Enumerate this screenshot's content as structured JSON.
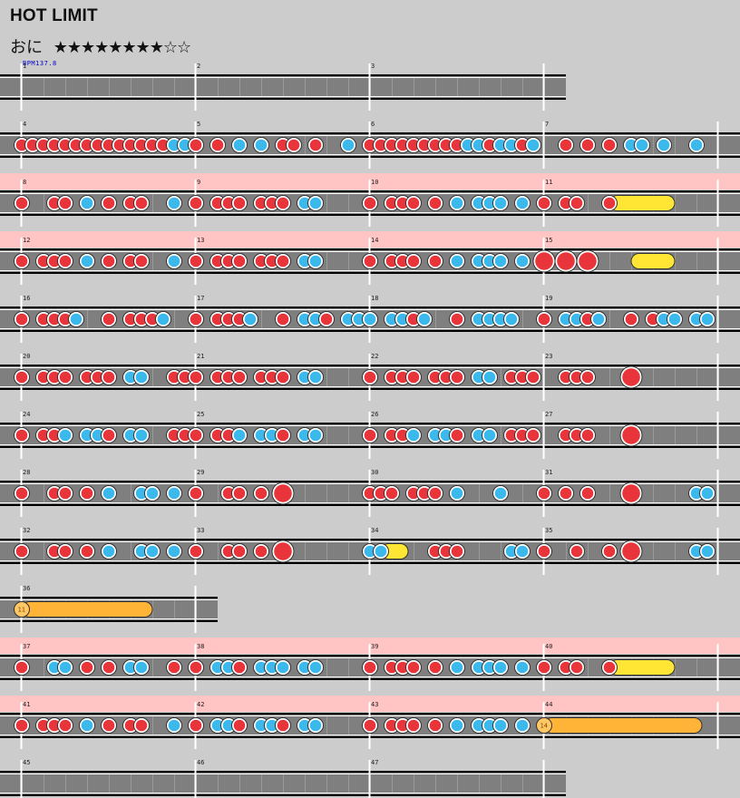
{
  "song": {
    "title": "HOT LIMIT",
    "difficulty": "おに",
    "stars": "★★★★★★★★☆☆",
    "bpm_label": "BPM137.8"
  },
  "colors": {
    "background": "#cccccc",
    "lane": "#7f7f7f",
    "gogo_band": "#ffc4c4",
    "don": "#e8353b",
    "ka": "#3cb9ec",
    "drumroll": "#ffe534",
    "balloon": "#ffb438"
  },
  "measures": [
    {
      "n": "1",
      "row": 0,
      "notes": ""
    },
    {
      "n": "2",
      "row": 0,
      "notes": ""
    },
    {
      "n": "3",
      "row": 0,
      "notes": ""
    },
    {
      "n": "4",
      "row": 1,
      "notes": "0d 1d 2d 3d 4d 5d 6d 7d 8d 9d 10d 11d 12d 13d 14k 15k"
    },
    {
      "n": "5",
      "row": 1,
      "notes": "0d 2d 4k 6k 8d 9d 11d 14k"
    },
    {
      "n": "6",
      "row": 1,
      "notes": "0d 1d 2d 3d 4d 5d 6d 7d 8d 9k 10k 11d 12k 13k 14d 15k"
    },
    {
      "n": "7",
      "row": 1,
      "notes": "2d 4d 6d 8k 9k 11k 14k"
    },
    {
      "n": "8",
      "row": 2,
      "gogo": true,
      "notes": "0d 3d 4d 6k 8d 10d 11d 14k"
    },
    {
      "n": "9",
      "row": 2,
      "gogo": true,
      "notes": "0d 2d 3d 4d 6d 7d 8d 10k 11k"
    },
    {
      "n": "10",
      "row": 2,
      "gogo": true,
      "notes": "0d 2d 3d 4d 6d 8k 10k 11k 12k 14k"
    },
    {
      "n": "11",
      "row": 2,
      "gogo": true,
      "notes": "0d 2d 3d 6d",
      "roll": {
        "type": "drumroll",
        "start": 6,
        "end": 12
      }
    },
    {
      "n": "12",
      "row": 3,
      "gogo": true,
      "notes": "0d 2d 3d 4d 6k 8d 10d 11d 14k"
    },
    {
      "n": "13",
      "row": 3,
      "gogo": true,
      "notes": "0d 2d 3d 4d 6d 7d 8d 10k 11k"
    },
    {
      "n": "14",
      "row": 3,
      "gogo": true,
      "notes": "0d 2d 3d 4d 6d 8k 10k 11k 12k 14k"
    },
    {
      "n": "15",
      "row": 3,
      "gogo": true,
      "notes": "0D 2D 4D",
      "roll": {
        "type": "drumroll",
        "start": 8,
        "end": 12
      }
    },
    {
      "n": "16",
      "row": 4,
      "notes": "0d 2d 3d 4d 5k 8d 10d 11d 12d 13k"
    },
    {
      "n": "17",
      "row": 4,
      "notes": "0d 2d 3d 4d 5k 8d 10k 11k 12d 14k 15k"
    },
    {
      "n": "18",
      "row": 4,
      "notes": "0k 2k 3k 4d 5k 8d 10k 11k 12k 13k"
    },
    {
      "n": "19",
      "row": 4,
      "notes": "0d 2k 3k 4d 5k 8d 10d 11k 12k 14k 15k"
    },
    {
      "n": "20",
      "row": 5,
      "notes": "0d 2d 3d 4d 6d 7d 8d 10k 11k 14d 15d"
    },
    {
      "n": "21",
      "row": 5,
      "notes": "0d 2d 3d 4d 6d 7d 8d 10k 11k"
    },
    {
      "n": "22",
      "row": 5,
      "notes": "0d 2d 3d 4d 6d 7d 8d 10k 11k 13d 14d 15d"
    },
    {
      "n": "23",
      "row": 5,
      "notes": "2d 3d 4d 8D"
    },
    {
      "n": "24",
      "row": 6,
      "notes": "0d 2d 3d 4k 6k 7k 8d 10k 11k 14d 15d"
    },
    {
      "n": "25",
      "row": 6,
      "notes": "0d 2d 3d 4k 6k 7k 8d 10k 11k"
    },
    {
      "n": "26",
      "row": 6,
      "notes": "0d 2d 3d 4k 6k 7k 8d 10k 11k 13d 14d 15d"
    },
    {
      "n": "27",
      "row": 6,
      "notes": "2d 3d 4d 8D"
    },
    {
      "n": "28",
      "row": 7,
      "notes": "0d 3d 4d 6d 8k 11k 12k 14k"
    },
    {
      "n": "29",
      "row": 7,
      "notes": "0d 3d 4d 6d 8D"
    },
    {
      "n": "30",
      "row": 7,
      "notes": "0d 1d 2d 4d 5d 6d 8k 12k"
    },
    {
      "n": "31",
      "row": 7,
      "notes": "0d 2d 4d 8D 14k 15k"
    },
    {
      "n": "32",
      "row": 8,
      "notes": "0d 3d 4d 6d 8k 11k 12k 14k"
    },
    {
      "n": "33",
      "row": 8,
      "notes": "0d 3d 4d 6d 8D"
    },
    {
      "n": "34",
      "row": 8,
      "notes": "0k 1k",
      "roll": {
        "type": "drumroll",
        "start": 1,
        "end": 3.5
      },
      "extra": "6d 7d 8d 13k 14k"
    },
    {
      "n": "35",
      "row": 8,
      "notes": "0d 3d 6d 8D 14k 15k"
    },
    {
      "n": "36",
      "row": 9,
      "notes": "",
      "roll": {
        "type": "balloon",
        "start": 0,
        "end": 12,
        "count": "11"
      }
    },
    {
      "n": "37",
      "row": 10,
      "gogo": true,
      "notes": "0d 3k 4k 6d 8d 10k 11k 14d"
    },
    {
      "n": "38",
      "row": 10,
      "gogo": true,
      "notes": "0d 2k 3k 4d 6k 7k 8k 10k 11k"
    },
    {
      "n": "39",
      "row": 10,
      "gogo": true,
      "notes": "0d 2d 3d 4d 6d 8k 10k 11k 12k 14k"
    },
    {
      "n": "40",
      "row": 10,
      "gogo": true,
      "notes": "0d 2d 3d 6d",
      "roll": {
        "type": "drumroll",
        "start": 6,
        "end": 12
      }
    },
    {
      "n": "41",
      "row": 11,
      "gogo": true,
      "notes": "0d 2d 3d 4d 6k 8d 10d 11d 14k"
    },
    {
      "n": "42",
      "row": 11,
      "gogo": true,
      "notes": "0d 2k 3k 4d 6k 7k 8d 10k 11k"
    },
    {
      "n": "43",
      "row": 11,
      "gogo": true,
      "notes": "0d 2d 3d 4d 6d 8k 10k 11k 12k 14k"
    },
    {
      "n": "44",
      "row": 11,
      "gogo": true,
      "notes": "",
      "roll": {
        "type": "balloon",
        "start": 0,
        "end": 14.5,
        "count": "14"
      }
    },
    {
      "n": "45",
      "row": 12,
      "notes": ""
    },
    {
      "n": "46",
      "row": 12,
      "notes": ""
    },
    {
      "n": "47",
      "row": 12,
      "notes": ""
    }
  ]
}
